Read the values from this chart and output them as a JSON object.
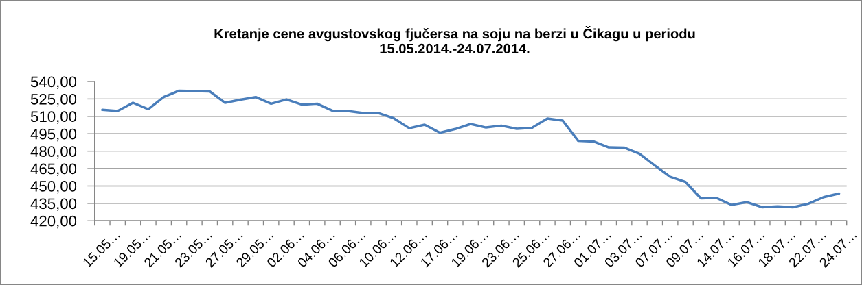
{
  "chart_data": {
    "type": "line",
    "title": "Kretanje cene avgustovskog fjučersa na soju na berzi u Čikagu u periodu\n15.05.2014.-24.07.2014.",
    "categories": [
      "15.05…",
      null,
      "19.05…",
      null,
      "21.05…",
      null,
      "23.05…",
      null,
      "27.05…",
      null,
      "29.05…",
      null,
      "02.06…",
      null,
      "04.06…",
      null,
      "06.06…",
      null,
      "10.06…",
      null,
      "12.06…",
      null,
      "17.06…",
      null,
      "19.06…",
      null,
      "23.06…",
      null,
      "25.06…",
      null,
      "27.06…",
      null,
      "01.07…",
      null,
      "03.07…",
      null,
      "07.07…",
      null,
      "09.07…",
      null,
      "14.07…",
      null,
      "16.07…",
      null,
      "18.07…",
      null,
      "22.07…",
      null,
      "24.07…"
    ],
    "series": [
      {
        "color": "#4a7ebb",
        "values": [
          515.6,
          514.6,
          521.7,
          516.2,
          526.6,
          532.1,
          531.7,
          531.5,
          521.7,
          524.4,
          526.6,
          520.9,
          524.6,
          520.1,
          520.9,
          514.8,
          514.6,
          512.8,
          512.8,
          508.3,
          499.8,
          502.8,
          495.9,
          499.1,
          503.4,
          500.4,
          502.0,
          499.3,
          500.2,
          508.1,
          506.3,
          489.0,
          488.4,
          483.3,
          483.1,
          477.8,
          467.6,
          457.9,
          453.4,
          439.4,
          439.8,
          433.7,
          436.1,
          431.7,
          432.5,
          431.7,
          434.7,
          440.4,
          443.5
        ]
      }
    ],
    "ylim": [
      420,
      540
    ],
    "yticks": [
      {
        "value": 420,
        "label": "420,00"
      },
      {
        "value": 435,
        "label": "435,00"
      },
      {
        "value": 450,
        "label": "450,00"
      },
      {
        "value": 465,
        "label": "465,00"
      },
      {
        "value": 480,
        "label": "480,00"
      },
      {
        "value": 495,
        "label": "495,00"
      },
      {
        "value": 510,
        "label": "510,00"
      },
      {
        "value": 525,
        "label": "525,00"
      },
      {
        "value": 540,
        "label": "540,00"
      }
    ],
    "grid": "y",
    "line_style": "solid"
  }
}
